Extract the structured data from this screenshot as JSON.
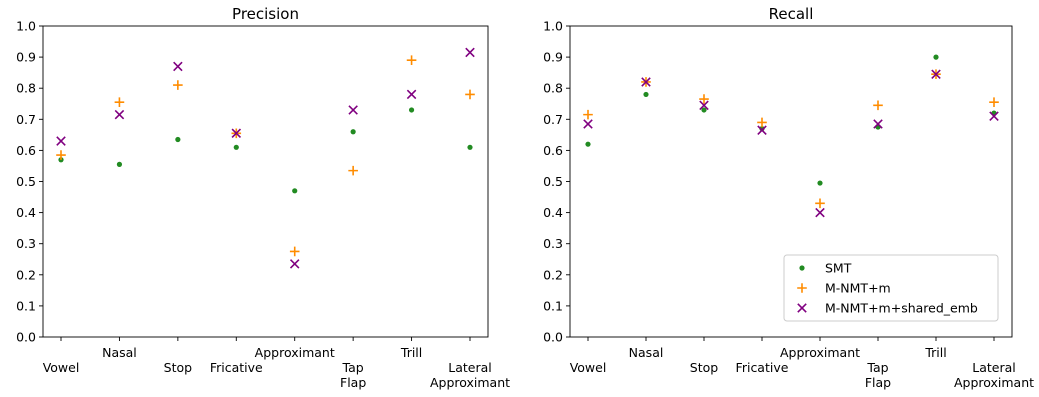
{
  "chart_data": [
    {
      "type": "scatter",
      "title": "Precision",
      "categories": [
        "Vowel",
        "Nasal",
        "Stop",
        "Fricative",
        "Approximant",
        "Tap\nFlap",
        "Trill",
        "Lateral\nApproximant"
      ],
      "ylim": [
        0,
        1.0
      ],
      "yticks": [
        "0.0",
        "0.1",
        "0.2",
        "0.3",
        "0.4",
        "0.5",
        "0.6",
        "0.7",
        "0.8",
        "0.9",
        "1.0"
      ],
      "series": [
        {
          "name": "SMT",
          "marker": "dot",
          "color": "#228b22",
          "values": [
            0.57,
            0.555,
            0.635,
            0.61,
            0.47,
            0.66,
            0.73,
            0.61
          ]
        },
        {
          "name": "M-NMT+m",
          "marker": "plus",
          "color": "#ff8c00",
          "values": [
            0.585,
            0.755,
            0.81,
            0.655,
            0.275,
            0.535,
            0.89,
            0.78
          ]
        },
        {
          "name": "M-NMT+m+shared_emb",
          "marker": "x",
          "color": "#800080",
          "values": [
            0.63,
            0.715,
            0.87,
            0.655,
            0.235,
            0.73,
            0.78,
            0.915
          ]
        }
      ],
      "legend": false
    },
    {
      "type": "scatter",
      "title": "Recall",
      "categories": [
        "Vowel",
        "Nasal",
        "Stop",
        "Fricative",
        "Approximant",
        "Tap\nFlap",
        "Trill",
        "Lateral\nApproximant"
      ],
      "ylim": [
        0,
        1.0
      ],
      "yticks": [
        "0.0",
        "0.1",
        "0.2",
        "0.3",
        "0.4",
        "0.5",
        "0.6",
        "0.7",
        "0.8",
        "0.9",
        "1.0"
      ],
      "series": [
        {
          "name": "SMT",
          "marker": "dot",
          "color": "#228b22",
          "values": [
            0.62,
            0.78,
            0.73,
            0.67,
            0.495,
            0.675,
            0.9,
            0.72
          ]
        },
        {
          "name": "M-NMT+m",
          "marker": "plus",
          "color": "#ff8c00",
          "values": [
            0.715,
            0.82,
            0.765,
            0.69,
            0.43,
            0.745,
            0.845,
            0.755
          ]
        },
        {
          "name": "M-NMT+m+shared_emb",
          "marker": "x",
          "color": "#800080",
          "values": [
            0.685,
            0.82,
            0.745,
            0.665,
            0.4,
            0.685,
            0.845,
            0.71
          ]
        }
      ],
      "legend": true,
      "legend_position": "lower-right"
    }
  ]
}
